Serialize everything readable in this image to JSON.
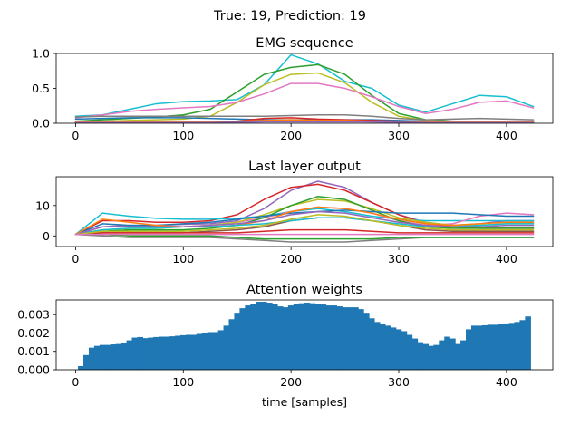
{
  "suptitle": "True: 19, Prediction: 19",
  "chart_data": [
    {
      "type": "line",
      "title": "EMG sequence",
      "xlabel": "",
      "ylabel": "",
      "xlim": [
        -18,
        443
      ],
      "ylim": [
        0,
        1.0
      ],
      "xticks": [
        0,
        100,
        200,
        300,
        400
      ],
      "yticks": [
        0.0,
        0.5,
        1.0
      ],
      "ytick_labels": [
        "0.0",
        "0.5",
        "1.0"
      ],
      "grid": false,
      "legend": "none",
      "x": [
        0,
        25,
        50,
        75,
        100,
        125,
        150,
        175,
        200,
        225,
        250,
        275,
        300,
        325,
        350,
        375,
        400,
        425
      ],
      "series": [
        {
          "color": "#17becf",
          "values": [
            0.1,
            0.12,
            0.2,
            0.28,
            0.31,
            0.32,
            0.34,
            0.55,
            0.98,
            0.85,
            0.6,
            0.5,
            0.26,
            0.16,
            0.28,
            0.4,
            0.38,
            0.24
          ]
        },
        {
          "color": "#2ca02c",
          "values": [
            0.03,
            0.05,
            0.07,
            0.09,
            0.12,
            0.2,
            0.45,
            0.7,
            0.8,
            0.84,
            0.7,
            0.4,
            0.14,
            0.05,
            0.03,
            0.02,
            0.02,
            0.02
          ]
        },
        {
          "color": "#bcbd22",
          "values": [
            0.02,
            0.03,
            0.04,
            0.05,
            0.06,
            0.1,
            0.3,
            0.55,
            0.7,
            0.72,
            0.58,
            0.3,
            0.1,
            0.04,
            0.02,
            0.02,
            0.02,
            0.02
          ]
        },
        {
          "color": "#e377c2",
          "values": [
            0.08,
            0.12,
            0.17,
            0.2,
            0.22,
            0.24,
            0.3,
            0.42,
            0.57,
            0.57,
            0.5,
            0.38,
            0.24,
            0.14,
            0.2,
            0.3,
            0.32,
            0.22
          ]
        },
        {
          "color": "#7f7f7f",
          "values": [
            0.09,
            0.1,
            0.1,
            0.1,
            0.1,
            0.1,
            0.1,
            0.1,
            0.11,
            0.12,
            0.12,
            0.1,
            0.07,
            0.05,
            0.06,
            0.07,
            0.06,
            0.05
          ]
        },
        {
          "color": "#1f77b4",
          "values": [
            0.06,
            0.07,
            0.08,
            0.08,
            0.08,
            0.07,
            0.06,
            0.05,
            0.05,
            0.05,
            0.05,
            0.05,
            0.04,
            0.03,
            0.03,
            0.03,
            0.03,
            0.03
          ]
        },
        {
          "color": "#d62728",
          "values": [
            0.01,
            0.01,
            0.01,
            0.01,
            0.01,
            0.02,
            0.03,
            0.07,
            0.08,
            0.06,
            0.05,
            0.04,
            0.03,
            0.02,
            0.01,
            0.01,
            0.01,
            0.01
          ]
        },
        {
          "color": "#ff7f0e",
          "values": [
            0.02,
            0.02,
            0.02,
            0.02,
            0.02,
            0.02,
            0.03,
            0.04,
            0.05,
            0.04,
            0.04,
            0.03,
            0.02,
            0.02,
            0.02,
            0.02,
            0.02,
            0.02
          ]
        },
        {
          "color": "#8c564b",
          "values": [
            0.01,
            0.01,
            0.01,
            0.01,
            0.01,
            0.01,
            0.02,
            0.03,
            0.03,
            0.03,
            0.03,
            0.02,
            0.02,
            0.01,
            0.01,
            0.01,
            0.01,
            0.01
          ]
        },
        {
          "color": "#9467bd",
          "values": [
            0.01,
            0.01,
            0.01,
            0.01,
            0.01,
            0.01,
            0.01,
            0.02,
            0.02,
            0.02,
            0.02,
            0.02,
            0.01,
            0.01,
            0.01,
            0.01,
            0.01,
            0.01
          ]
        }
      ]
    },
    {
      "type": "line",
      "title": "Last layer output",
      "xlabel": "",
      "ylabel": "",
      "xlim": [
        -18,
        443
      ],
      "ylim": [
        -3.5,
        19.5
      ],
      "xticks": [
        0,
        100,
        200,
        300,
        400
      ],
      "yticks": [
        0,
        10
      ],
      "ytick_labels": [
        "0",
        "10"
      ],
      "grid": false,
      "legend": "none",
      "x": [
        0,
        25,
        50,
        75,
        100,
        125,
        150,
        175,
        200,
        225,
        250,
        275,
        300,
        325,
        350,
        375,
        400,
        425
      ],
      "series": [
        {
          "color": "#9467bd",
          "values": [
            0.5,
            3,
            3.5,
            3.5,
            3.8,
            4,
            5,
            9,
            15,
            18,
            16,
            11,
            7,
            4.5,
            3.5,
            4,
            5,
            5
          ]
        },
        {
          "color": "#d62728",
          "values": [
            0.5,
            5,
            5,
            4.5,
            4.5,
            5,
            7,
            12,
            16,
            17,
            15,
            11,
            7,
            4,
            3,
            2.5,
            2.5,
            2.5
          ]
        },
        {
          "color": "#17becf",
          "values": [
            0.5,
            7.5,
            6.5,
            5.8,
            5.5,
            5.5,
            5.8,
            6.5,
            8,
            9,
            8,
            6.5,
            5.5,
            5,
            5,
            5,
            5,
            5
          ]
        },
        {
          "color": "#e377c2",
          "values": [
            0.5,
            3,
            3,
            3,
            3,
            3.5,
            4.5,
            6,
            8,
            9.5,
            9,
            7.5,
            5,
            3.5,
            4,
            6.5,
            7.5,
            7
          ]
        },
        {
          "color": "#bcbd22",
          "values": [
            0.5,
            2,
            2.5,
            2.5,
            3,
            3.5,
            4.5,
            7,
            10,
            12,
            11.5,
            9,
            6,
            4.5,
            3.5,
            3.5,
            4,
            4
          ]
        },
        {
          "color": "#2ca02c",
          "values": [
            0.5,
            1.5,
            2,
            2,
            2,
            2.5,
            3.5,
            6,
            10,
            13,
            12,
            8.5,
            5,
            3,
            2.5,
            2.5,
            2.5,
            2.5
          ]
        },
        {
          "color": "#1f77b4",
          "values": [
            0.5,
            4,
            3.5,
            3.5,
            4,
            4.5,
            5.5,
            6.5,
            7.5,
            8,
            8.5,
            8,
            7.5,
            7.5,
            7.5,
            7,
            6.5,
            6.5
          ]
        },
        {
          "color": "#ff7f0e",
          "values": [
            0.5,
            5.5,
            4.5,
            3.5,
            3,
            3,
            3.5,
            5,
            8,
            9.5,
            9,
            7.5,
            5.5,
            4,
            3.5,
            4,
            4.5,
            4.5
          ]
        },
        {
          "color": "#8c564b",
          "values": [
            0.5,
            1,
            1,
            1,
            1,
            1.5,
            2,
            3,
            5,
            6,
            6,
            5,
            3.5,
            2,
            1.5,
            1.5,
            1.5,
            1.5
          ]
        },
        {
          "color": "#7f7f7f",
          "values": [
            0.5,
            0,
            -0.5,
            -0.5,
            -0.5,
            -0.5,
            -1,
            -1.5,
            -2,
            -2,
            -2,
            -1.5,
            -1,
            -0.5,
            -0.5,
            -0.5,
            -0.5,
            -0.5
          ]
        },
        {
          "color": "#17becf",
          "values": [
            0.5,
            2,
            2.5,
            2.5,
            3,
            3,
            3.5,
            4,
            5,
            6,
            6,
            5,
            4,
            3,
            3,
            3.5,
            4,
            4
          ]
        },
        {
          "color": "#d62728",
          "values": [
            0.5,
            1,
            1,
            1,
            1,
            1,
            1,
            1.5,
            2,
            2,
            2,
            1.5,
            1,
            1,
            1,
            1,
            1,
            1
          ]
        },
        {
          "color": "#2ca02c",
          "values": [
            0.5,
            0.5,
            0,
            0,
            0,
            0,
            -0.5,
            -1,
            -1,
            -1,
            -1,
            -1,
            -0.5,
            -0.5,
            -0.5,
            -0.5,
            -0.5,
            -0.5
          ]
        },
        {
          "color": "#9467bd",
          "values": [
            0.5,
            3,
            3,
            3,
            3,
            3.5,
            4,
            5,
            7,
            8,
            7.5,
            6,
            4.5,
            3.5,
            3,
            3,
            3.5,
            3.5
          ]
        },
        {
          "color": "#bcbd22",
          "values": [
            0.5,
            1.5,
            1.5,
            1.5,
            1.5,
            2,
            2.5,
            3.5,
            5.5,
            7,
            6.5,
            5,
            3.5,
            2.5,
            2,
            2,
            2,
            2
          ]
        },
        {
          "color": "#e377c2",
          "values": [
            0.5,
            0.5,
            0.5,
            0.5,
            0.5,
            0.5,
            0.5,
            0.5,
            0.5,
            0.5,
            0.5,
            0.5,
            0.5,
            0.5,
            0.5,
            0.5,
            0.5,
            0.5
          ]
        }
      ]
    },
    {
      "type": "bar",
      "title": "Attention weights",
      "xlabel": "time [samples]",
      "ylabel": "",
      "xlim": [
        -18,
        443
      ],
      "ylim": [
        0,
        0.0038
      ],
      "xticks": [
        0,
        100,
        200,
        300,
        400
      ],
      "yticks": [
        0,
        0.001,
        0.002,
        0.003
      ],
      "ytick_labels": [
        "0.000",
        "0.001",
        "0.002",
        "0.003"
      ],
      "grid": false,
      "legend": "none",
      "color": "#1f77b4",
      "x": [
        5,
        10,
        15,
        20,
        25,
        30,
        35,
        40,
        45,
        50,
        55,
        60,
        65,
        70,
        75,
        80,
        85,
        90,
        95,
        100,
        105,
        110,
        115,
        120,
        125,
        130,
        135,
        140,
        145,
        150,
        155,
        160,
        165,
        170,
        175,
        180,
        185,
        190,
        195,
        200,
        205,
        210,
        215,
        220,
        225,
        230,
        235,
        240,
        245,
        250,
        255,
        260,
        265,
        270,
        275,
        280,
        285,
        290,
        295,
        300,
        305,
        310,
        315,
        320,
        325,
        330,
        335,
        340,
        345,
        350,
        355,
        360,
        365,
        370,
        375,
        380,
        385,
        390,
        395,
        400,
        405,
        410,
        415,
        420
      ],
      "values": [
        0.0002,
        0.0008,
        0.0012,
        0.0013,
        0.00135,
        0.00135,
        0.00138,
        0.0014,
        0.00145,
        0.0016,
        0.00175,
        0.00178,
        0.00172,
        0.00175,
        0.00178,
        0.0018,
        0.0018,
        0.00182,
        0.00185,
        0.00188,
        0.0019,
        0.0019,
        0.00195,
        0.002,
        0.00205,
        0.00205,
        0.00215,
        0.0024,
        0.00275,
        0.0031,
        0.00335,
        0.0035,
        0.0036,
        0.0037,
        0.0037,
        0.00365,
        0.0036,
        0.00345,
        0.0034,
        0.0035,
        0.0036,
        0.00362,
        0.00365,
        0.00362,
        0.0036,
        0.00355,
        0.0035,
        0.0035,
        0.00345,
        0.0034,
        0.0034,
        0.0034,
        0.0033,
        0.0031,
        0.0028,
        0.0026,
        0.0025,
        0.0024,
        0.0023,
        0.0022,
        0.0021,
        0.0019,
        0.0017,
        0.0015,
        0.0014,
        0.0013,
        0.00135,
        0.0016,
        0.0018,
        0.0017,
        0.0014,
        0.0016,
        0.0022,
        0.0024,
        0.0024,
        0.00242,
        0.00245,
        0.00245,
        0.0025,
        0.00252,
        0.00255,
        0.0026,
        0.0027,
        0.0029
      ]
    }
  ]
}
